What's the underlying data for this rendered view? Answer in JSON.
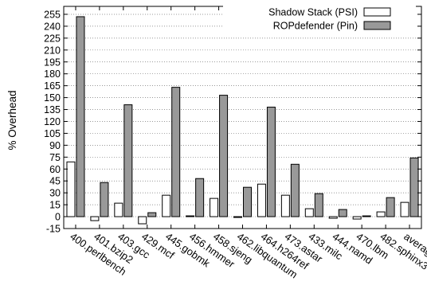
{
  "chart_data": {
    "type": "bar",
    "ylabel": "% Overhead",
    "xlabel": "",
    "title": "",
    "ylim": [
      -15,
      265
    ],
    "yticks": [
      -15,
      0,
      15,
      30,
      45,
      60,
      75,
      90,
      105,
      120,
      135,
      150,
      165,
      180,
      195,
      210,
      225,
      240,
      255
    ],
    "grid": "horizontal dotted",
    "legend_position": "top-right",
    "categories": [
      "400.perlbench",
      "401.bzip2",
      "403.gcc",
      "429.mcf",
      "445.gobmk",
      "456.hmmer",
      "458.sjeng",
      "462.libquantum",
      "464.h264ref",
      "473.astar",
      "433.milc",
      "444.namd",
      "470.lbm",
      "482.sphinx3",
      "average"
    ],
    "series": [
      {
        "name": "Shadow Stack (PSI)",
        "color": "#ffffff",
        "values": [
          69,
          -5,
          17,
          -9,
          27,
          1,
          23,
          -1,
          41,
          27,
          10,
          -2,
          -3,
          6,
          18
        ]
      },
      {
        "name": "ROPdefender (Pin)",
        "color": "#999999",
        "values": [
          252,
          43,
          141,
          5,
          163,
          48,
          153,
          37,
          138,
          66,
          29,
          9,
          1,
          24,
          74
        ]
      }
    ]
  }
}
